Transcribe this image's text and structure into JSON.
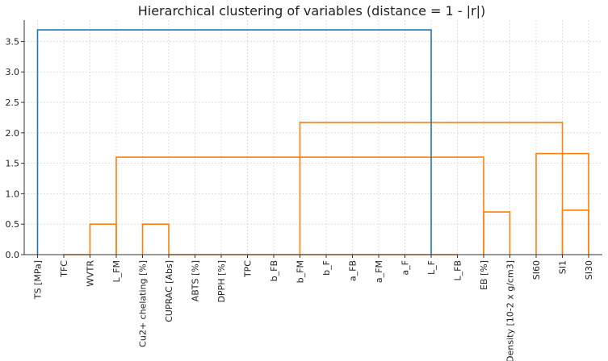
{
  "chart_data": {
    "type": "dendrogram",
    "title": "Hierarchical clustering of variables (distance = 1 - |r|)",
    "xlabel": "",
    "ylabel": "",
    "ylim": [
      0,
      3.85
    ],
    "yticks": [
      0.0,
      0.5,
      1.0,
      1.5,
      2.0,
      2.5,
      3.0,
      3.5
    ],
    "grid": true,
    "leaves": [
      "TS [MPa]",
      "TFC",
      "WVTR",
      "L_FM",
      "Cu2+ chelating [%]",
      "CUPRAC [Abs]",
      "ABTS [%]",
      "DPPH [%]",
      "TPC",
      "b_FB",
      "b_FM",
      "b_F",
      "a_FB",
      "a_FM",
      "a_F",
      "L_F",
      "L_FB",
      "EB [%]",
      "Density [10-2 x g/cm3]",
      "SI60",
      "SI1",
      "SI30"
    ],
    "link_colors": {
      "above_threshold": "#1f77b4",
      "cluster": "#ff7f0e"
    },
    "links": [
      {
        "ns": [
          1,
          2,
          3
        ],
        "ds": [
          0.0,
          0.5
        ],
        "color": "cluster"
      },
      {
        "ns": [
          4,
          5
        ],
        "ds": [
          0.0,
          0.5
        ],
        "color": "cluster"
      },
      {
        "ns": [
          5,
          6,
          7,
          8,
          9,
          10,
          11,
          12,
          13,
          14,
          15,
          16
        ],
        "ds": [
          0.0,
          0.0
        ],
        "color": "cluster"
      },
      {
        "ns": [
          17,
          18
        ],
        "ds": [
          0.7
        ],
        "color": "cluster"
      },
      {
        "ns": [
          20,
          21
        ],
        "ds": [
          0.73
        ],
        "color": "cluster"
      },
      {
        "ns": [
          19,
          21
        ],
        "ds": [
          1.66
        ],
        "color": "cluster"
      },
      {
        "ns": [
          3,
          17
        ],
        "ds": [
          1.6
        ],
        "color": "cluster"
      },
      {
        "ns": [
          10,
          20
        ],
        "ds": [
          2.17
        ],
        "color": "cluster"
      },
      {
        "ns": [
          0,
          15
        ],
        "ds": [
          3.69
        ],
        "color": "above_threshold"
      }
    ]
  }
}
